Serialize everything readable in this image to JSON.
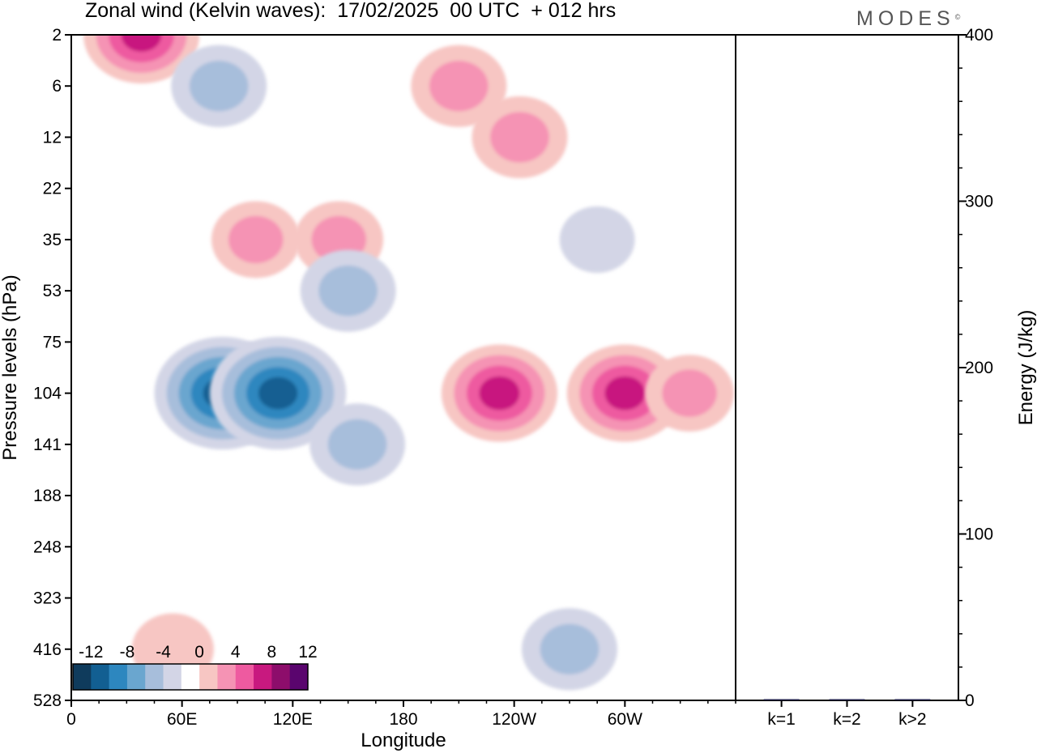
{
  "title": "Zonal wind (Kelvin waves):  17/02/2025  00 UTC  + 012 hrs",
  "logo": "MODES",
  "logo_mark": "©",
  "colors": {
    "neg": [
      "#0f3b5c",
      "#125f92",
      "#2d87bf",
      "#6aa6cf",
      "#a7bedb",
      "#d3d5e6"
    ],
    "zero": "#ffffff",
    "pos": [
      "#f7c6c3",
      "#f593b4",
      "#ee5aa0",
      "#c8197f",
      "#8d0d6b",
      "#5a056e"
    ]
  },
  "chart_data": [
    {
      "type": "heatmap",
      "title": "Zonal wind (Kelvin waves):  17/02/2025  00 UTC  + 012 hrs",
      "xlabel": "Longitude",
      "ylabel": "Pressure levels (hPa)",
      "x_ticks": [
        "0",
        "60E",
        "120E",
        "180",
        "120W",
        "60W"
      ],
      "x_tick_values": [
        0,
        60,
        120,
        180,
        240,
        300
      ],
      "xlim": [
        0,
        360
      ],
      "y_ticks": [
        "2",
        "6",
        "12",
        "22",
        "35",
        "53",
        "75",
        "104",
        "141",
        "188",
        "248",
        "323",
        "416",
        "528"
      ],
      "y_scale": "categorical pressure levels, top to bottom",
      "colorbar": {
        "labels": [
          "-12",
          "-8",
          "-4",
          "0",
          "4",
          "8",
          "12"
        ],
        "levels": [
          -14,
          -12,
          -10,
          -8,
          -6,
          -4,
          -2,
          2,
          4,
          6,
          8,
          10,
          12,
          14
        ]
      },
      "features": [
        {
          "lon": 38,
          "level": "2",
          "value": 8
        },
        {
          "lon": 80,
          "level": "6",
          "value": -5
        },
        {
          "lon": 210,
          "level": "6",
          "value": 5
        },
        {
          "lon": 243,
          "level": "12",
          "value": 5
        },
        {
          "lon": 100,
          "level": "35",
          "value": 4
        },
        {
          "lon": 145,
          "level": "35",
          "value": 4
        },
        {
          "lon": 285,
          "level": "35",
          "value": -2
        },
        {
          "lon": 150,
          "level": "53",
          "value": -5
        },
        {
          "lon": 82,
          "level": "104",
          "value": -11
        },
        {
          "lon": 112,
          "level": "104",
          "value": -11
        },
        {
          "lon": 155,
          "level": "141",
          "value": -5
        },
        {
          "lon": 232,
          "level": "104",
          "value": 8
        },
        {
          "lon": 300,
          "level": "104",
          "value": 8
        },
        {
          "lon": 335,
          "level": "104",
          "value": 4
        },
        {
          "lon": 270,
          "level": "416",
          "value": -5
        },
        {
          "lon": 55,
          "level": "416",
          "value": 3
        }
      ]
    },
    {
      "type": "bar",
      "ylabel": "Energy (J/kg)",
      "categories": [
        "k=1",
        "k=2",
        "k>2"
      ],
      "values": [
        0.7,
        0.2,
        0.5
      ],
      "ylim": [
        0,
        400
      ],
      "y_ticks": [
        "0",
        "100",
        "200",
        "300",
        "400"
      ]
    }
  ]
}
